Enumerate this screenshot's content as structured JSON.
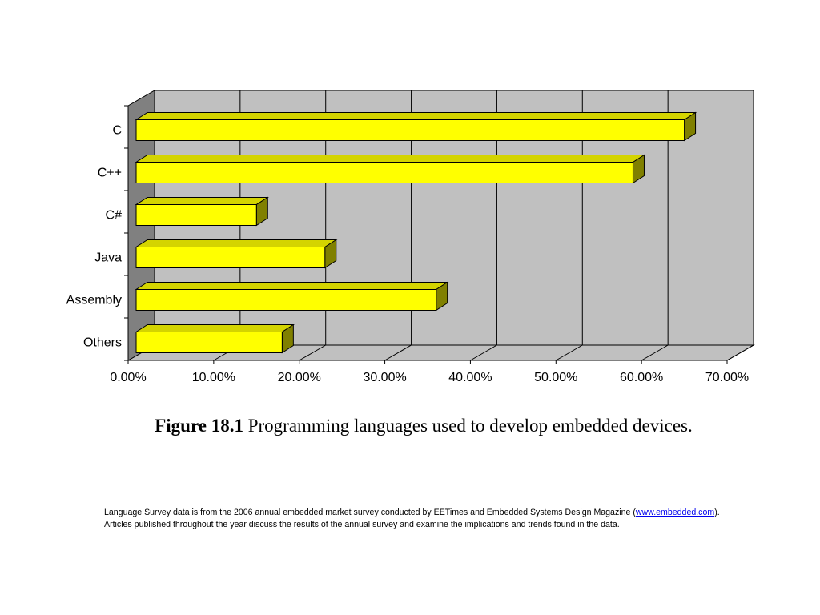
{
  "chart_data": {
    "type": "bar",
    "orientation": "horizontal",
    "style": "3d",
    "categories": [
      "C",
      "C++",
      "C#",
      "Java",
      "Assembly",
      "Others"
    ],
    "values": [
      65,
      59,
      15,
      23,
      36,
      18
    ],
    "xlim": [
      0,
      70
    ],
    "x_ticks": [
      "0.00%",
      "10.00%",
      "20.00%",
      "30.00%",
      "40.00%",
      "50.00%",
      "60.00%",
      "70.00%"
    ],
    "grid": true,
    "legend": "none",
    "colors": {
      "bar_front": "#ffff00",
      "bar_top": "#d4d400",
      "bar_side": "#808000",
      "wall": "#c0c0c0",
      "side_wall": "#808080"
    }
  },
  "caption": {
    "figure_number": "Figure 18.1",
    "text": " Programming languages used to develop embedded devices."
  },
  "footnote": {
    "line1_prefix": "Language Survey data is from the 2006 annual embedded market survey conducted by EETimes and Embedded Systems Design Magazine (",
    "link_text": "www.embedded.com",
    "line1_suffix": ").",
    "line2": "Articles published throughout the year discuss the results of the annual survey and examine the implications and trends found in the data."
  }
}
